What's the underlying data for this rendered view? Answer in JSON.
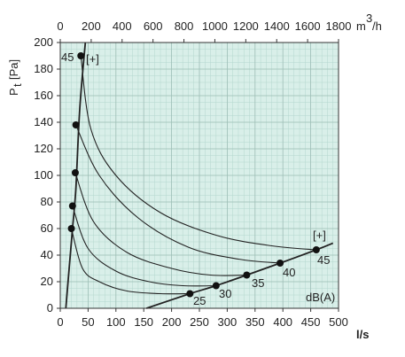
{
  "chart_data": {
    "type": "line",
    "title": "",
    "xlabel": "l/s",
    "ylabel_main": "P",
    "ylabel_sub": "t",
    "ylabel_unit": "[Pa]",
    "x2label_main": "m",
    "x2label_sup": "3",
    "x2label_tail": "/h",
    "xlim": [
      0,
      500
    ],
    "ylim": [
      0,
      200
    ],
    "x2lim": [
      0,
      1800
    ],
    "xticks": [
      "0",
      "50",
      "100",
      "150",
      "200",
      "250",
      "300",
      "350",
      "400",
      "450",
      "500"
    ],
    "x2ticks": [
      "0",
      "200",
      "400",
      "600",
      "800",
      "1000",
      "1200",
      "1400",
      "1600",
      "1800"
    ],
    "yticks": [
      "0",
      "20",
      "40",
      "60",
      "80",
      "100",
      "120",
      "140",
      "160",
      "180",
      "200"
    ],
    "grid": true,
    "background": "#d9efe9",
    "line_color": "#222222",
    "series": [
      {
        "points": [
          [
            10,
            0
          ],
          [
            18,
            40
          ],
          [
            22,
            60
          ],
          [
            28,
            90
          ],
          [
            35,
            150
          ],
          [
            45,
            200
          ]
        ]
      },
      {
        "points": [
          [
            20,
            60
          ],
          [
            40,
            30
          ],
          [
            70,
            20
          ],
          [
            120,
            13
          ],
          [
            180,
            11
          ],
          [
            233,
            11
          ]
        ]
      },
      {
        "points": [
          [
            22,
            77
          ],
          [
            50,
            45
          ],
          [
            100,
            28
          ],
          [
            160,
            20
          ],
          [
            220,
            17
          ],
          [
            280,
            17
          ]
        ]
      },
      {
        "points": [
          [
            27,
            102
          ],
          [
            60,
            65
          ],
          [
            120,
            42
          ],
          [
            200,
            30
          ],
          [
            270,
            25
          ],
          [
            335,
            25
          ]
        ]
      },
      {
        "points": [
          [
            28,
            138
          ],
          [
            70,
            100
          ],
          [
            140,
            68
          ],
          [
            230,
            46
          ],
          [
            320,
            37
          ],
          [
            395,
            34
          ]
        ]
      },
      {
        "points": [
          [
            37,
            190
          ],
          [
            55,
            135
          ],
          [
            100,
            100
          ],
          [
            180,
            72
          ],
          [
            280,
            55
          ],
          [
            380,
            47
          ],
          [
            460,
            44
          ]
        ]
      },
      {
        "points": [
          [
            155,
            0
          ],
          [
            233,
            11
          ],
          [
            280,
            17
          ],
          [
            335,
            25
          ],
          [
            395,
            34
          ],
          [
            460,
            44
          ],
          [
            490,
            49
          ]
        ]
      }
    ],
    "markers": [
      [
        20,
        60
      ],
      [
        22,
        77
      ],
      [
        27,
        102
      ],
      [
        28,
        138
      ],
      [
        37,
        190
      ],
      [
        233,
        11
      ],
      [
        280,
        17
      ],
      [
        335,
        25
      ],
      [
        395,
        34
      ],
      [
        460,
        44
      ]
    ],
    "annotations": [
      "45",
      "25",
      "30",
      "35",
      "40",
      "45",
      "dB(A)",
      "[+]",
      "[+]"
    ]
  }
}
